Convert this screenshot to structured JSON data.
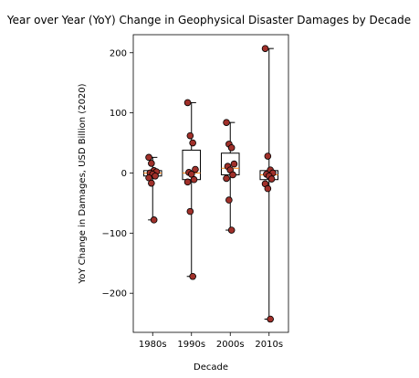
{
  "chart_data": {
    "type": "box",
    "title": "Year over Year (YoY) Change in Geophysical Disaster Damages by Decade",
    "xlabel": "Decade",
    "ylabel": "YoY Change in Damages, USD Billion (2020)",
    "ylim": [
      -265,
      230
    ],
    "yticks": [
      -200,
      -100,
      0,
      100,
      200
    ],
    "categories": [
      "1980s",
      "1990s",
      "2000s",
      "2010s"
    ],
    "boxes": [
      {
        "category": "1980s",
        "min": -78,
        "q1": -5,
        "median": 0,
        "q3": 4,
        "max": 26
      },
      {
        "category": "1990s",
        "min": -172,
        "q1": -11,
        "median": 0,
        "q3": 38,
        "max": 117
      },
      {
        "category": "2000s",
        "min": -95,
        "q1": -3,
        "median": 8,
        "q3": 33,
        "max": 84
      },
      {
        "category": "2010s",
        "min": -243,
        "q1": -11,
        "median": -3,
        "q3": 4,
        "max": 207
      }
    ],
    "points": [
      {
        "category": "1980s",
        "values": [
          26,
          16,
          4,
          2,
          0,
          -2,
          -5,
          -8,
          -17,
          -78
        ]
      },
      {
        "category": "1990s",
        "values": [
          117,
          62,
          50,
          6,
          1,
          -2,
          -11,
          -15,
          -64,
          -172
        ]
      },
      {
        "category": "2000s",
        "values": [
          84,
          48,
          42,
          15,
          11,
          5,
          -3,
          -9,
          -45,
          -95
        ]
      },
      {
        "category": "2010s",
        "values": [
          207,
          28,
          5,
          0,
          -2,
          -5,
          -10,
          -18,
          -26,
          -243
        ]
      }
    ],
    "colors": {
      "box": "#000000",
      "median": "#ff7f0e",
      "point_fill": "#a0302a",
      "point_edge": "#000000"
    },
    "grid": false
  }
}
